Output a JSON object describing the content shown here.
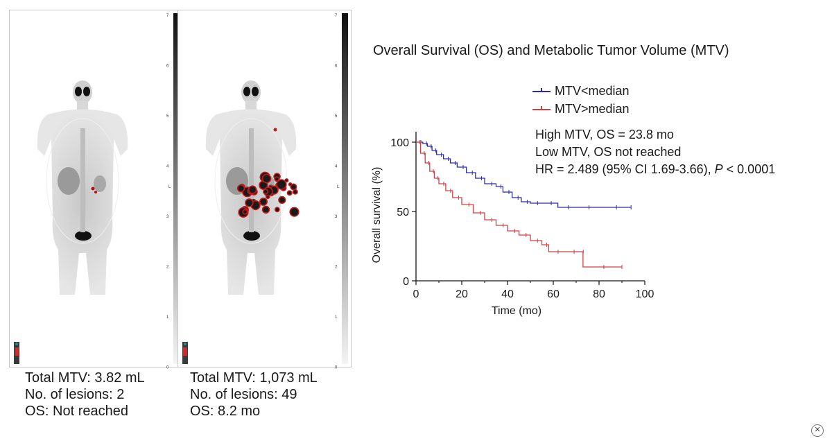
{
  "scans": [
    {
      "scale_ticks": [
        "7",
        "6",
        "5",
        "4",
        "3",
        "2",
        "1",
        "0"
      ],
      "mark": "L",
      "lesions": 2,
      "caption": [
        "Total MTV: 3.82 mL",
        "No. of lesions: 2",
        "OS: Not reached"
      ]
    },
    {
      "scale_ticks": [
        "7",
        "6",
        "5",
        "4",
        "3",
        "2",
        "1",
        "0"
      ],
      "mark": "L",
      "lesions": 49,
      "caption": [
        "Total MTV: 1,073 mL",
        "No. of lesions: 49",
        "OS: 8.2 mo"
      ]
    }
  ],
  "chart_data": {
    "type": "line",
    "title": "Overall Survival (OS) and Metabolic Tumor Volume (MTV)",
    "xlabel": "Time (mo)",
    "ylabel": "Overall survival (%)",
    "xlim": [
      0,
      100
    ],
    "ylim": [
      0,
      100
    ],
    "xticks": [
      0,
      20,
      40,
      60,
      80,
      100
    ],
    "yticks": [
      0,
      50,
      100
    ],
    "legend_position": "top-right",
    "series": [
      {
        "name": "MTV<median",
        "color": "#2b2ba8",
        "x": [
          0,
          3,
          5,
          7,
          9,
          12,
          15,
          18,
          22,
          26,
          30,
          35,
          38,
          42,
          46,
          50,
          55,
          62,
          70,
          80,
          94
        ],
        "y": [
          100,
          99,
          97,
          94,
          91,
          88,
          85,
          82,
          78,
          74,
          70,
          68,
          64,
          60,
          57,
          56,
          56,
          53,
          53,
          53,
          53
        ]
      },
      {
        "name": "MTV>median",
        "color": "#d04040",
        "x": [
          0,
          2,
          4,
          6,
          8,
          10,
          13,
          16,
          20,
          25,
          30,
          35,
          40,
          45,
          50,
          55,
          58,
          65,
          72,
          73,
          90
        ],
        "y": [
          100,
          92,
          85,
          79,
          74,
          70,
          65,
          60,
          55,
          49,
          44,
          40,
          36,
          33,
          29,
          26,
          21,
          21,
          21,
          10,
          10
        ]
      }
    ],
    "annotations": [
      "High MTV, OS = 23.8 mo",
      "Low MTV, OS not reached",
      "HR = 2.489 (95% CI 1.69-3.66), P < 0.0001"
    ]
  }
}
